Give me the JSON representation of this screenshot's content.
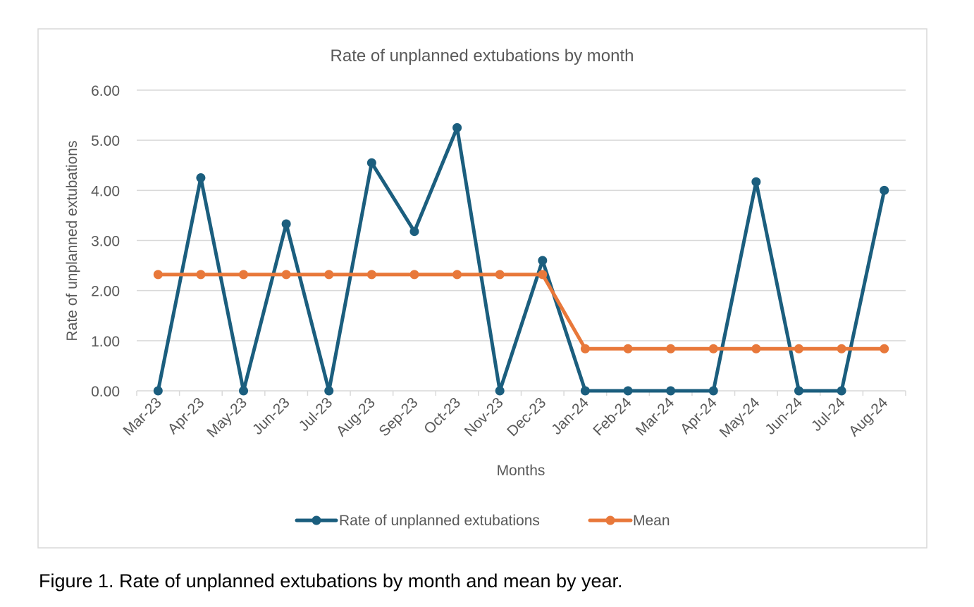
{
  "chart_data": {
    "type": "line",
    "title": "Rate of unplanned extubations by month",
    "xlabel": "Months",
    "ylabel": "Rate of unplanned extubations",
    "ylim": [
      0,
      6
    ],
    "y_ticks": [
      "0.00",
      "1.00",
      "2.00",
      "3.00",
      "4.00",
      "5.00",
      "6.00"
    ],
    "grid": true,
    "legend_position": "bottom",
    "categories": [
      "Mar-23",
      "Apr-23",
      "May-23",
      "Jun-23",
      "Jul-23",
      "Aug-23",
      "Sep-23",
      "Oct-23",
      "Nov-23",
      "Dec-23",
      "Jan-24",
      "Feb-24",
      "Mar-24",
      "Apr-24",
      "May-24",
      "Jun-24",
      "Jul-24",
      "Aug-24"
    ],
    "series": [
      {
        "name": "Rate of unplanned extubations",
        "color": "#1b5e7e",
        "values": [
          0,
          4.25,
          0,
          3.33,
          0,
          4.55,
          3.18,
          5.25,
          0,
          2.6,
          0,
          0,
          0,
          0,
          4.17,
          0,
          0,
          4.0
        ]
      },
      {
        "name": "Mean",
        "color": "#e8783a",
        "values": [
          2.32,
          2.32,
          2.32,
          2.32,
          2.32,
          2.32,
          2.32,
          2.32,
          2.32,
          2.32,
          0.84,
          0.84,
          0.84,
          0.84,
          0.84,
          0.84,
          0.84,
          0.84
        ]
      }
    ]
  },
  "caption": "Figure 1. Rate of unplanned extubations by month and mean by year."
}
